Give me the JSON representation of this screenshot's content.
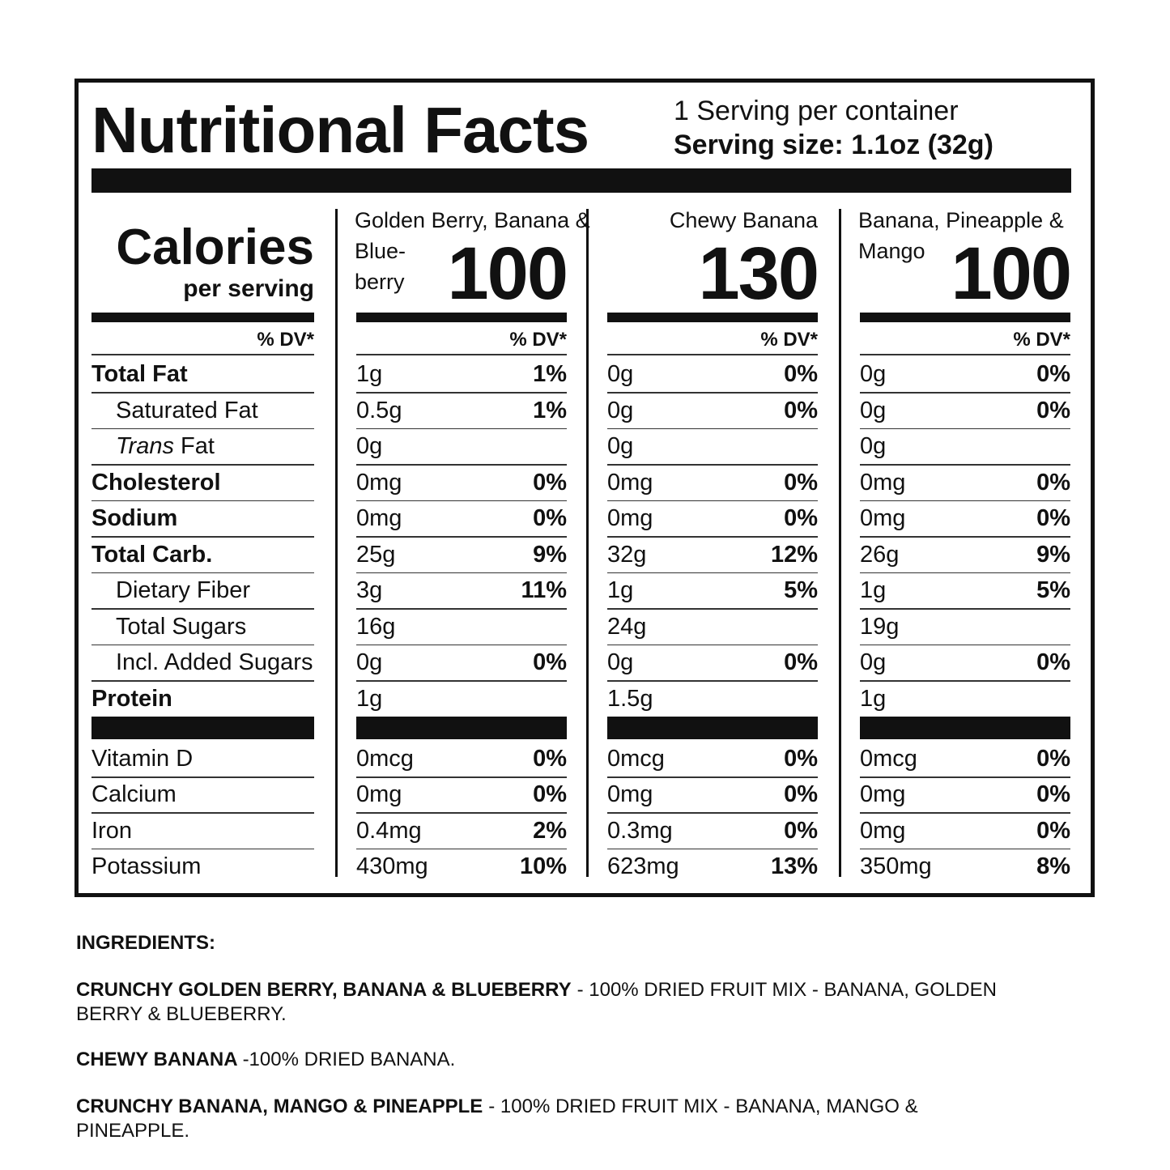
{
  "header": {
    "title": "Nutritional Facts",
    "servings": "1 Serving per container",
    "serving_size": "Serving size: 1.1oz (32g)"
  },
  "calories": {
    "label": "Calories",
    "sublabel": "per serving"
  },
  "dv_header": "% DV*",
  "nutrients": [
    "Total Fat",
    "Saturated Fat",
    {
      "italic": "Trans",
      "rest": "Fat"
    },
    "Cholesterol",
    "Sodium",
    "Total Carb.",
    "Dietary Fiber",
    "Total Sugars",
    "Incl. Added Sugars",
    "Protein",
    "Vitamin D",
    "Calcium",
    "Iron",
    "Potassium"
  ],
  "products": [
    {
      "name_lines": [
        "Golden Berry, Banana &",
        "Blue-",
        "berry"
      ],
      "calories": 100,
      "values": [
        [
          "1g",
          "1%"
        ],
        [
          "0.5g",
          "1%"
        ],
        [
          "0g",
          null
        ],
        [
          "0mg",
          "0%"
        ],
        [
          "0mg",
          "0%"
        ],
        [
          "25g",
          "9%"
        ],
        [
          "3g",
          "11%"
        ],
        [
          "16g",
          null
        ],
        [
          "0g",
          "0%"
        ],
        [
          "1g",
          null
        ],
        [
          "0mcg",
          "0%"
        ],
        [
          "0mg",
          "0%"
        ],
        [
          "0.4mg",
          "2%"
        ],
        [
          "430mg",
          "10%"
        ]
      ]
    },
    {
      "name_lines": [
        "Chewy Banana"
      ],
      "calories": 130,
      "values": [
        [
          "0g",
          "0%"
        ],
        [
          "0g",
          "0%"
        ],
        [
          "0g",
          null
        ],
        [
          "0mg",
          "0%"
        ],
        [
          "0mg",
          "0%"
        ],
        [
          "32g",
          "12%"
        ],
        [
          "1g",
          "5%"
        ],
        [
          "24g",
          null
        ],
        [
          "0g",
          "0%"
        ],
        [
          "1.5g",
          null
        ],
        [
          "0mcg",
          "0%"
        ],
        [
          "0mg",
          "0%"
        ],
        [
          "0.3mg",
          "0%"
        ],
        [
          "623mg",
          "13%"
        ]
      ]
    },
    {
      "name_lines": [
        "Banana, Pineapple &",
        "Mango"
      ],
      "calories": 100,
      "values": [
        [
          "0g",
          "0%"
        ],
        [
          "0g",
          "0%"
        ],
        [
          "0g",
          null
        ],
        [
          "0mg",
          "0%"
        ],
        [
          "0mg",
          "0%"
        ],
        [
          "26g",
          "9%"
        ],
        [
          "1g",
          "5%"
        ],
        [
          "19g",
          null
        ],
        [
          "0g",
          "0%"
        ],
        [
          "1g",
          null
        ],
        [
          "0mcg",
          "0%"
        ],
        [
          "0mg",
          "0%"
        ],
        [
          "0mg",
          "0%"
        ],
        [
          "350mg",
          "8%"
        ]
      ]
    }
  ],
  "ingredients": {
    "heading": "INGREDIENTS:",
    "items": [
      {
        "name": "CRUNCHY GOLDEN BERRY, BANANA & BLUEBERRY",
        "text": "- 100% DRIED FRUIT MIX - BANANA, GOLDEN BERRY & BLUEBERRY."
      },
      {
        "name": "CHEWY BANANA",
        "text": "-100% DRIED BANANA."
      },
      {
        "name": "CRUNCHY BANANA, MANGO & PINEAPPLE",
        "text": "- 100% DRIED FRUIT MIX - BANANA, MANGO & PINEAPPLE."
      }
    ]
  }
}
